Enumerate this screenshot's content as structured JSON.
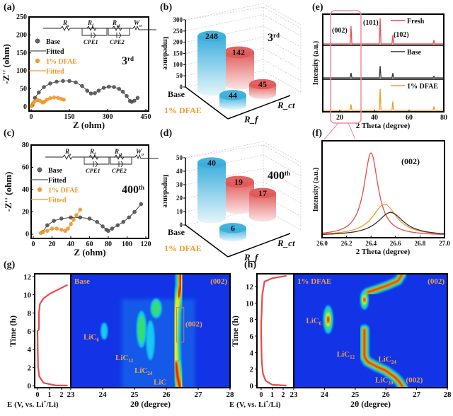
{
  "panel_labels": {
    "a": "(a)",
    "b": "(b)",
    "c": "(c)",
    "d": "(d)",
    "e": "(e)",
    "f": "(f)",
    "g": "(g)",
    "h": "(h)"
  },
  "circuit": {
    "rs": "R",
    "rs_sub": "s",
    "rf": "R",
    "rf_sub": "f",
    "rct": "R",
    "rct_sub": "ct",
    "w": "W",
    "w_sub": "o",
    "cpe1": "CPE1",
    "cpe2": "CPE2"
  },
  "colors": {
    "base": "#555555",
    "dfae": "#f59a2a",
    "fresh": "#ec4a4a",
    "cyan": "#36a9d6",
    "red": "#e05a5a",
    "heat_bg": "#1234e6"
  },
  "chart_data": [
    {
      "id": "a",
      "type": "scatter",
      "title": "",
      "cycle": "3",
      "cycle_sup": "rd",
      "xlabel": "Z (ohm)",
      "ylabel": "-Z'' (ohm)",
      "xlim": [
        0,
        450
      ],
      "ylim": [
        0,
        250
      ],
      "xticks": [
        0,
        150,
        300,
        450
      ],
      "yticks": [
        0,
        50,
        100,
        150,
        200,
        250
      ],
      "legend": [
        "Base",
        "Fitted",
        "1% DFAE",
        "Fitted"
      ],
      "series": [
        {
          "name": "Base",
          "points": [
            [
              5,
              5
            ],
            [
              15,
              25
            ],
            [
              30,
              40
            ],
            [
              50,
              55
            ],
            [
              75,
              65
            ],
            [
              100,
              70
            ],
            [
              125,
              72
            ],
            [
              150,
              72
            ],
            [
              175,
              68
            ],
            [
              200,
              58
            ],
            [
              220,
              45
            ],
            [
              235,
              37
            ],
            [
              250,
              38
            ],
            [
              265,
              45
            ],
            [
              285,
              53
            ],
            [
              305,
              56
            ],
            [
              325,
              55
            ],
            [
              345,
              50
            ],
            [
              360,
              42
            ],
            [
              375,
              30
            ],
            [
              388,
              16
            ],
            [
              395,
              14
            ],
            [
              405,
              17
            ],
            [
              418,
              25
            ]
          ]
        },
        {
          "name": "1% DFAE",
          "points": [
            [
              2,
              2
            ],
            [
              8,
              10
            ],
            [
              15,
              16
            ],
            [
              25,
              19
            ],
            [
              35,
              17
            ],
            [
              45,
              12
            ],
            [
              52,
              14
            ],
            [
              62,
              20
            ],
            [
              75,
              24
            ],
            [
              90,
              26
            ],
            [
              105,
              25
            ],
            [
              118,
              22
            ],
            [
              128,
              20
            ]
          ]
        }
      ]
    },
    {
      "id": "c",
      "type": "scatter",
      "cycle": "400",
      "cycle_sup": "th",
      "xlabel": "Z (ohm)",
      "ylabel": "-Z'' (ohm)",
      "xlim": [
        0,
        120
      ],
      "ylim": [
        0,
        80
      ],
      "xticks": [
        0,
        20,
        40,
        60,
        80,
        100,
        120
      ],
      "yticks": [
        0,
        20,
        40,
        60,
        80
      ],
      "legend": [
        "Base",
        "Fitted",
        "1% DFAE",
        "Fitted"
      ],
      "series": [
        {
          "name": "Base",
          "points": [
            [
              10,
              2
            ],
            [
              15,
              8
            ],
            [
              22,
              12
            ],
            [
              30,
              14
            ],
            [
              40,
              15
            ],
            [
              50,
              15
            ],
            [
              60,
              14
            ],
            [
              68,
              11
            ],
            [
              74,
              7
            ],
            [
              78,
              4
            ],
            [
              80,
              3
            ],
            [
              84,
              5
            ],
            [
              90,
              8
            ],
            [
              96,
              11
            ],
            [
              102,
              15
            ],
            [
              108,
              20
            ],
            [
              115,
              27
            ]
          ]
        },
        {
          "name": "1% DFAE",
          "points": [
            [
              8,
              1
            ],
            [
              10,
              2
            ],
            [
              15,
              3
            ],
            [
              20,
              5
            ],
            [
              25,
              5
            ],
            [
              30,
              4
            ],
            [
              34,
              3
            ],
            [
              37,
              5
            ],
            [
              40,
              9
            ],
            [
              43,
              13
            ],
            [
              46,
              17
            ],
            [
              50,
              22
            ]
          ]
        }
      ]
    },
    {
      "id": "b",
      "type": "bar",
      "cycle": "3",
      "cycle_sup": "rd",
      "ylabel": "Impedance",
      "ylim": [
        0,
        300
      ],
      "yticks": [
        0,
        50,
        100,
        150,
        200,
        250,
        300
      ],
      "rows": [
        "Base",
        "1% DFAE"
      ],
      "cols": [
        "R_f",
        "R_ct"
      ],
      "values": [
        [
          248,
          142
        ],
        [
          44,
          45
        ]
      ]
    },
    {
      "id": "d",
      "type": "bar",
      "cycle": "400",
      "cycle_sup": "th",
      "ylabel": "Impedance",
      "ylim": [
        0,
        50
      ],
      "yticks": [
        0,
        10,
        20,
        30,
        40,
        50
      ],
      "rows": [
        "Base",
        "1% DFAE"
      ],
      "cols": [
        "R_f",
        "R_ct"
      ],
      "values": [
        [
          40,
          19
        ],
        [
          6,
          17
        ]
      ]
    },
    {
      "id": "e",
      "type": "line",
      "xlabel": "2 Theta (degree)",
      "ylabel": "Intensity (a.u.)",
      "xlim": [
        10,
        80
      ],
      "xticks": [
        20,
        40,
        60,
        80
      ],
      "peak_positions": [
        26.5,
        43.3,
        50.6,
        74.3
      ],
      "peak_labels": [
        "(002)",
        "(101)",
        "(102)"
      ],
      "series": [
        {
          "name": "Fresh",
          "intensities": [
            0.62,
            0.9,
            0.3,
            0.13
          ]
        },
        {
          "name": "Base",
          "intensities": [
            0.16,
            0.38,
            0.15,
            0.05
          ]
        },
        {
          "name": "1% DFAE",
          "intensities": [
            0.2,
            0.72,
            0.3,
            0.13
          ]
        }
      ]
    },
    {
      "id": "f",
      "type": "line",
      "xlabel": "2 Theta (degree)",
      "ylabel": "Intensity (a.u.)",
      "xlim": [
        26.0,
        27.0
      ],
      "xticks": [
        "26.0",
        "26.2",
        "26.4",
        "26.6",
        "26.8",
        "27.0"
      ],
      "annotation": "(002)",
      "series": [
        {
          "name": "Fresh",
          "center": 26.4,
          "height": 1.0,
          "width": 0.07
        },
        {
          "name": "1% DFAE",
          "center": 26.51,
          "height": 0.38,
          "width": 0.12
        },
        {
          "name": "Base",
          "center": 26.56,
          "height": 0.28,
          "width": 0.13
        }
      ]
    },
    {
      "id": "g",
      "type": "heatmap",
      "label": "Base",
      "annotation": "(002)",
      "xlabel": "2θ (degree)",
      "ylabel": "Time (h)",
      "elabel": "E (V, vs. Li",
      "elabel_sup": "+",
      "elabel_end": "/Li)",
      "xlim": [
        23,
        28
      ],
      "ylim": [
        0,
        12
      ],
      "xticks": [
        "23",
        "24",
        "25",
        "26",
        "27",
        "28"
      ],
      "yticks": [
        "0",
        "2",
        "4",
        "6",
        "8",
        "10",
        "12"
      ],
      "eticks": [
        "0",
        "1",
        "2"
      ],
      "phases": [
        {
          "name": "LiC",
          "sub": "6"
        },
        {
          "name": "LiC",
          "sub": "12"
        },
        {
          "name": "LiC",
          "sub": "24"
        },
        {
          "name": "LiC",
          "sub": ""
        }
      ],
      "box_label": "(002)",
      "voltage_curve": [
        [
          2.5,
          0
        ],
        [
          1.5,
          0.02
        ],
        [
          0.5,
          0.3
        ],
        [
          0.15,
          1
        ],
        [
          0.05,
          2
        ],
        [
          0.02,
          4
        ],
        [
          0,
          6
        ],
        [
          0.12,
          6.2
        ],
        [
          0.12,
          8
        ],
        [
          0.2,
          9
        ],
        [
          0.5,
          9.6
        ],
        [
          1,
          10.1
        ],
        [
          2.5,
          11.1
        ]
      ]
    },
    {
      "id": "h",
      "type": "heatmap",
      "label": "1% DFAE",
      "annotation": "(002)",
      "xlabel": "2θ (degree)",
      "ylabel": "Time (h)",
      "elabel": "E (V, vs. Li",
      "elabel_sup": "+",
      "elabel_end": "/Li)",
      "xlim": [
        23,
        28
      ],
      "ylim": [
        0,
        13.3
      ],
      "xticks": [
        "23",
        "24",
        "25",
        "26",
        "27",
        "28"
      ],
      "yticks": [
        "0",
        "2",
        "4",
        "6",
        "8",
        "10",
        "12"
      ],
      "eticks": [
        "0",
        "1",
        "2"
      ],
      "phases": [
        {
          "name": "LiC",
          "sub": "6"
        },
        {
          "name": "LiC",
          "sub": "12"
        },
        {
          "name": "LiC",
          "sub": "24"
        },
        {
          "name": "LiC",
          "sub": "30"
        }
      ],
      "bottom_label": "(002)",
      "voltage_curve": [
        [
          2.3,
          0
        ],
        [
          1,
          0.1
        ],
        [
          0.4,
          0.6
        ],
        [
          0.15,
          1.5
        ],
        [
          0.05,
          3
        ],
        [
          0,
          6
        ],
        [
          0,
          7.6
        ],
        [
          0.05,
          9
        ],
        [
          0.1,
          11
        ],
        [
          0.3,
          12.6
        ],
        [
          1,
          13
        ],
        [
          2.3,
          13.3
        ]
      ]
    }
  ]
}
